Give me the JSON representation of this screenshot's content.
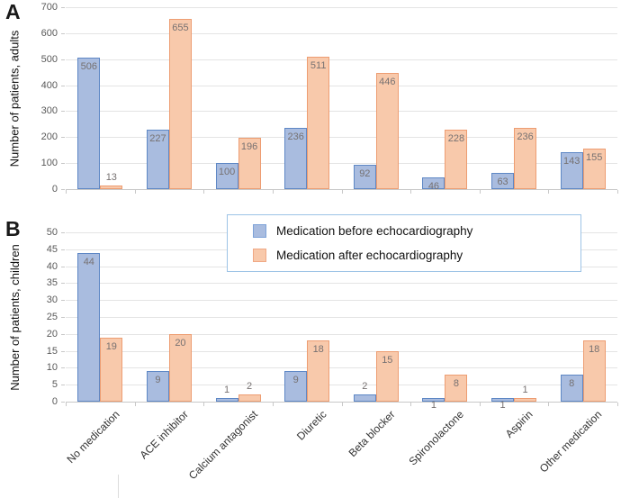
{
  "figure": {
    "panel_a_letter": "A",
    "panel_b_letter": "B"
  },
  "colors": {
    "before_fill": "#a9bcdf",
    "before_border": "#5e87c5",
    "after_fill": "#f8c9ab",
    "after_border": "#ed9d72",
    "gridline": "#e4e4e4",
    "axis_line": "#c8c8c8",
    "tick_text": "#595959",
    "data_label": "#767171",
    "legend_border": "#9dc3e6"
  },
  "legend": {
    "entries": [
      {
        "label": "Medication before echocardiography",
        "fill": "#a9bcdf",
        "border": "#7da2d8"
      },
      {
        "label": "Medication after echocardiography",
        "fill": "#f8c9ab",
        "border": "#f0a884"
      }
    ],
    "position": "inside-top of panel B"
  },
  "chart_data": [
    {
      "type": "bar",
      "panel": "A",
      "title": "",
      "xlabel": "",
      "ylabel": "Number of patients, adults",
      "ylim": [
        0,
        700
      ],
      "ytick_step": 100,
      "grid": true,
      "categories": [
        "No medication",
        "ACE inhibitor",
        "Calcium antagonist",
        "Diuretic",
        "Beta blocker",
        "Spironolactone",
        "Aspirin",
        "Other medication"
      ],
      "series": [
        {
          "name": "Medication before echocardiography",
          "values": [
            506,
            227,
            100,
            236,
            92,
            46,
            63,
            143
          ],
          "label_pos": [
            "in",
            "in",
            "in",
            "in",
            "in",
            "in",
            "in",
            "in"
          ]
        },
        {
          "name": "Medication after echocardiography",
          "values": [
            13,
            655,
            196,
            511,
            446,
            228,
            236,
            155
          ],
          "label_pos": [
            "above",
            "in",
            "in",
            "in",
            "in",
            "in",
            "in",
            "in"
          ]
        }
      ]
    },
    {
      "type": "bar",
      "panel": "B",
      "title": "",
      "xlabel": "",
      "ylabel": "Number of patients, children",
      "ylim": [
        0,
        50
      ],
      "ytick_step": 5,
      "grid": true,
      "categories": [
        "No medication",
        "ACE inhibitor",
        "Calcium antagonist",
        "Diuretic",
        "Beta blocker",
        "Spironolactone",
        "Aspirin",
        "Other medication"
      ],
      "series": [
        {
          "name": "Medication before echocardiography",
          "values": [
            44,
            9,
            1,
            9,
            2,
            1,
            1,
            8
          ],
          "label_pos": [
            "in",
            "in",
            "above",
            "in",
            "above",
            "below",
            "below",
            "in"
          ]
        },
        {
          "name": "Medication after echocardiography",
          "values": [
            19,
            20,
            2,
            18,
            15,
            8,
            1,
            18
          ],
          "label_pos": [
            "in",
            "in",
            "above",
            "in",
            "in",
            "in",
            "above",
            "in"
          ]
        }
      ]
    }
  ]
}
